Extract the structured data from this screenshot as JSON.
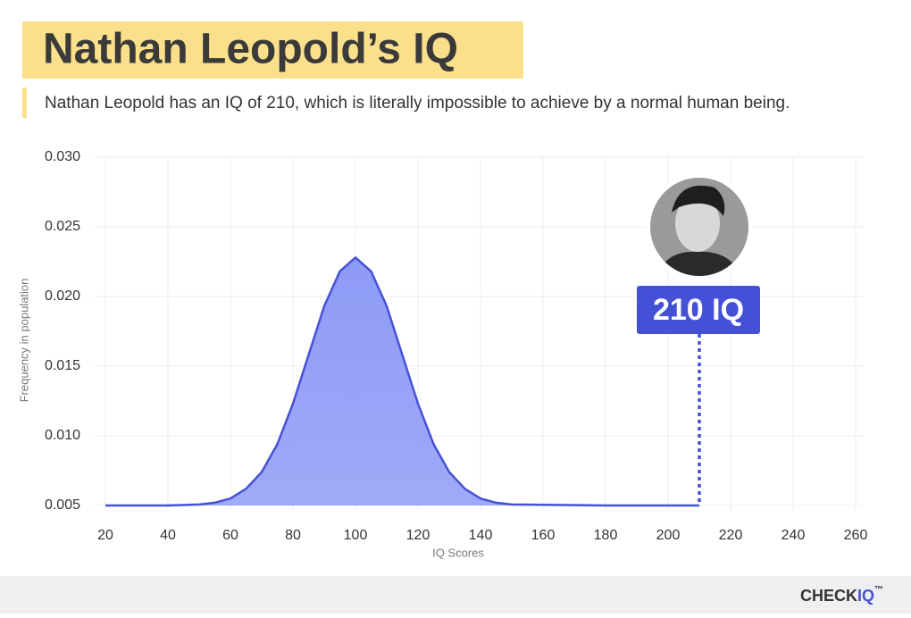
{
  "chart_data": {
    "type": "area",
    "title": "Nathan Leopold’s IQ",
    "subtitle": "Nathan Leopold has an IQ of 210, which is literally impossible to achieve by a normal human being.",
    "xlabel": "IQ Scores",
    "ylabel": "Frequency in population",
    "x": [
      20,
      40,
      50,
      55,
      60,
      65,
      70,
      75,
      80,
      85,
      90,
      95,
      100,
      105,
      110,
      115,
      120,
      125,
      130,
      135,
      140,
      145,
      150,
      180,
      210
    ],
    "values": [
      0.005,
      0.005,
      0.00507,
      0.0052,
      0.0055,
      0.0062,
      0.0074,
      0.0094,
      0.0123,
      0.0158,
      0.0193,
      0.0218,
      0.0228,
      0.0218,
      0.0193,
      0.0158,
      0.0123,
      0.0094,
      0.0074,
      0.0062,
      0.0055,
      0.0052,
      0.00507,
      0.005,
      0.005
    ],
    "color": "#4652d6",
    "fill": "#8e9bf6",
    "xlim": [
      20,
      260
    ],
    "xticks": [
      20,
      40,
      60,
      80,
      100,
      120,
      140,
      160,
      180,
      200,
      220,
      240,
      260
    ],
    "ylim": [
      0.005,
      0.03
    ],
    "yticks": [
      0.005,
      {
        "value": 0.01,
        "label": "0.010"
      },
      0.015,
      {
        "value": 0.02,
        "label": "0.020"
      },
      0.025,
      {
        "value": 0.03,
        "label": "0.030"
      }
    ],
    "grid": true,
    "annotation": {
      "x": 210,
      "label": "210 IQ",
      "color": "#4451d6"
    }
  },
  "brand": {
    "name": "CHECK",
    "accent": "IQ",
    "mark": "™"
  }
}
